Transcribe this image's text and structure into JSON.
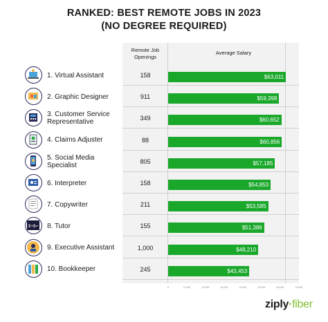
{
  "title_line1": "RANKED: BEST REMOTE JOBS IN 2023",
  "title_line2": "(NO DEGREE REQUIRED)",
  "col_openings_line1": "Remote Job",
  "col_openings_line2": "Openings",
  "col_salary": "Average Salary",
  "logo_word1": "ziply",
  "logo_word2": "fiber",
  "bar_color": "#1aa82b",
  "icon_border_color": "#2a2a5a",
  "chart_data": {
    "type": "bar",
    "orientation": "horizontal",
    "categories": [
      "1. Virtual Assistant",
      "2. Graphic Designer",
      "3. Customer Service Representative",
      "4. Claims Adjuster",
      "5. Social Media Specialist",
      "6. Interpreter",
      "7. Copywriter",
      "8. Tutor",
      "9. Executive Assistant",
      "10. Bookkeeper"
    ],
    "remote_job_openings": [
      "158",
      "911",
      "349",
      "88",
      "805",
      "158",
      "211",
      "155",
      "1,000",
      "245"
    ],
    "values": [
      63011,
      59398,
      60652,
      60856,
      57185,
      54853,
      53585,
      51386,
      48210,
      43453
    ],
    "value_labels": [
      "$63,011",
      "$59,398",
      "$60,652",
      "$60,856",
      "$57,185",
      "$54,853",
      "$53,585",
      "$51,386",
      "$48,210",
      "$43,453"
    ],
    "xlim": [
      0,
      70000
    ],
    "x_ticks": [
      0,
      10000,
      20000,
      30000,
      40000,
      50000,
      60000,
      70000
    ],
    "x_tick_labels": [
      "0",
      "10,000",
      "20,000",
      "30,000",
      "40,000",
      "50,000",
      "60,000",
      "70,000"
    ],
    "icons": [
      "virtual-assistant-icon",
      "graphic-designer-icon",
      "customer-service-icon",
      "claims-adjuster-icon",
      "social-media-icon",
      "interpreter-icon",
      "copywriter-icon",
      "tutor-icon",
      "executive-assistant-icon",
      "bookkeeper-icon"
    ],
    "grid": false
  }
}
